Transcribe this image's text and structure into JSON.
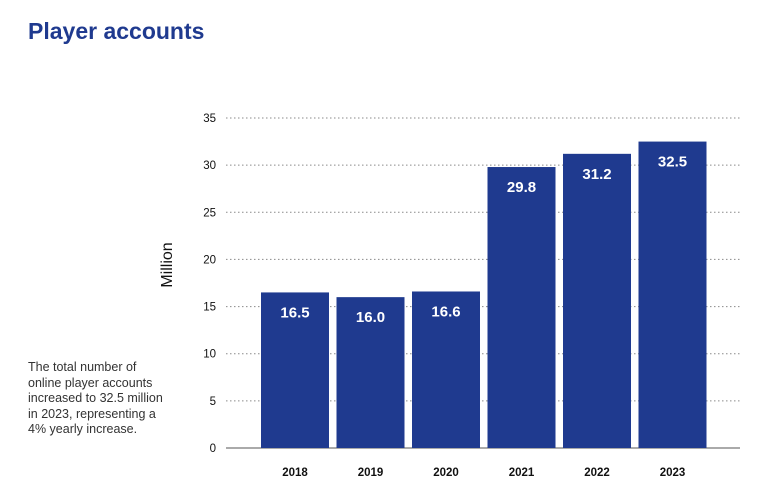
{
  "title": "Player accounts",
  "note": "The total number of online player accounts increased to 32.5 million in 2023, representing a 4% yearly increase.",
  "chart_data": {
    "type": "bar",
    "title": "Player accounts",
    "xlabel": "",
    "ylabel": "Million",
    "categories": [
      "2018",
      "2019",
      "2020",
      "2021",
      "2022",
      "2023"
    ],
    "values": [
      16.5,
      16.0,
      16.6,
      29.8,
      31.2,
      32.5
    ],
    "data_labels": [
      "16.5",
      "16.0",
      "16.6",
      "29.8",
      "31.2",
      "32.5"
    ],
    "ylim": [
      0,
      35
    ],
    "yticks": [
      0,
      5,
      10,
      15,
      20,
      25,
      30,
      35
    ],
    "grid": "horizontal-dotted",
    "legend": "none",
    "bar_color": "#1f3a8f"
  }
}
